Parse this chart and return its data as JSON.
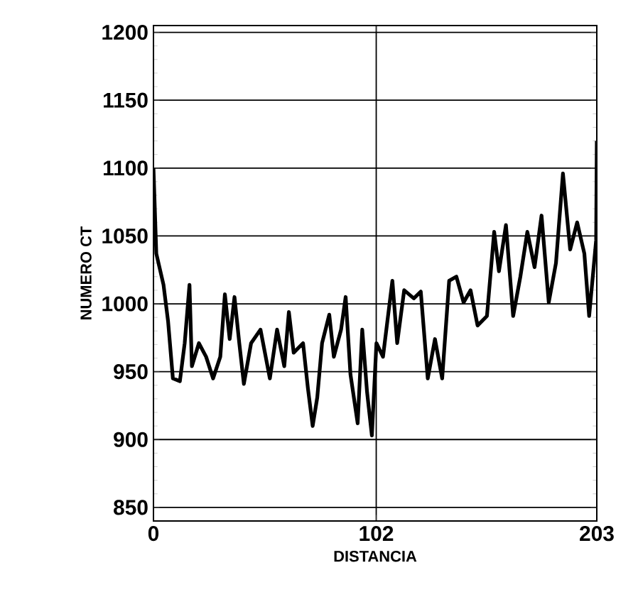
{
  "chart_data": {
    "type": "line",
    "xlabel": "DISTANCIA",
    "ylabel": "NUMERO CT",
    "x": [
      0,
      1.3,
      4.6,
      6.7,
      8.9,
      12.1,
      14.3,
      16.5,
      17.6,
      20.8,
      24.1,
      27.3,
      30.6,
      32.7,
      34.9,
      37.1,
      39.3,
      41.4,
      44.7,
      49,
      53.3,
      56.6,
      59.9,
      62,
      64.2,
      68.5,
      70.7,
      72.9,
      75,
      77.2,
      80.5,
      82.6,
      85.9,
      88,
      90.2,
      93.5,
      95.6,
      97.8,
      100,
      102.1,
      105.1,
      109.4,
      111.6,
      114.8,
      119.2,
      122.4,
      125.6,
      128.9,
      132.2,
      135.4,
      138.7,
      142,
      145.2,
      148.4,
      152.7,
      156,
      158.2,
      161.4,
      164.7,
      168,
      171.2,
      174.5,
      177.7,
      181,
      184.3,
      187.5,
      190.8,
      194,
      197.3,
      199.5,
      202.7,
      203
    ],
    "values": [
      1100,
      1037,
      1014,
      987,
      945,
      943,
      971,
      1014,
      954,
      971,
      961,
      945,
      961,
      1007,
      974,
      1005,
      971,
      941,
      971,
      981,
      945,
      981,
      954,
      994,
      964,
      971,
      938,
      910,
      931,
      971,
      992,
      961,
      981,
      1005,
      948,
      912,
      981,
      935,
      903,
      971,
      961,
      1017,
      971,
      1010,
      1004,
      1009,
      945,
      974,
      945,
      1017,
      1020,
      1001,
      1010,
      984,
      991,
      1053,
      1024,
      1058,
      991,
      1020,
      1053,
      1027,
      1065,
      1001,
      1030,
      1096,
      1040,
      1060,
      1037,
      991,
      1047,
      1120
    ],
    "color": "#000000",
    "xlim": [
      0,
      203
    ],
    "xticks": [
      0,
      102,
      203
    ],
    "ylim": [
      840,
      1205
    ],
    "yticks": [
      850,
      900,
      950,
      1000,
      1050,
      1100,
      1150,
      1200
    ],
    "grid": true,
    "line_style": "solid",
    "marker": "none"
  }
}
